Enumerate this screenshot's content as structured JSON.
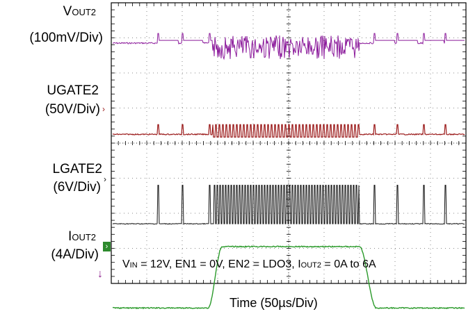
{
  "chart_data": {
    "type": "line",
    "title": "",
    "xlabel": "Time (50µs/Div)",
    "x_time_per_div_us": 50,
    "x_divisions": 10,
    "y_divisions": 8,
    "grid": true,
    "channels": [
      {
        "name": "VOUT2",
        "label_main": "V",
        "label_sub": "OUT2",
        "scale": "(100mV/Div)",
        "color": "#8b1a9b",
        "description": "output voltage ripple; transient burst during load step"
      },
      {
        "name": "UGATE2",
        "label_main": "UGATE2",
        "scale": "(50V/Div)",
        "color": "#9b1a1a"
      },
      {
        "name": "LGATE2",
        "label_main": "LGATE2",
        "scale": "(6V/Div)",
        "color": "#111111"
      },
      {
        "name": "IOUT2",
        "label_main": "I",
        "label_sub": "OUT2",
        "scale": "(4A/Div)",
        "color": "#2a9a2a",
        "levels_A": [
          0,
          6
        ],
        "step_up_div": 1.4,
        "step_down_div": 3.5
      }
    ],
    "annotation": {
      "vin_main": "V",
      "vin_sub": "IN",
      "vin_text": " = 12V, EN1 = 0V, EN2 = LDO3, I",
      "iout_sub": "OUT2",
      "iout_text": " = 0A to 6A"
    }
  },
  "colors": {
    "vout": "#8b1a9b",
    "ugate": "#9b1a1a",
    "lgate": "#111111",
    "iout": "#2a9a2a",
    "grid": "#888888"
  }
}
